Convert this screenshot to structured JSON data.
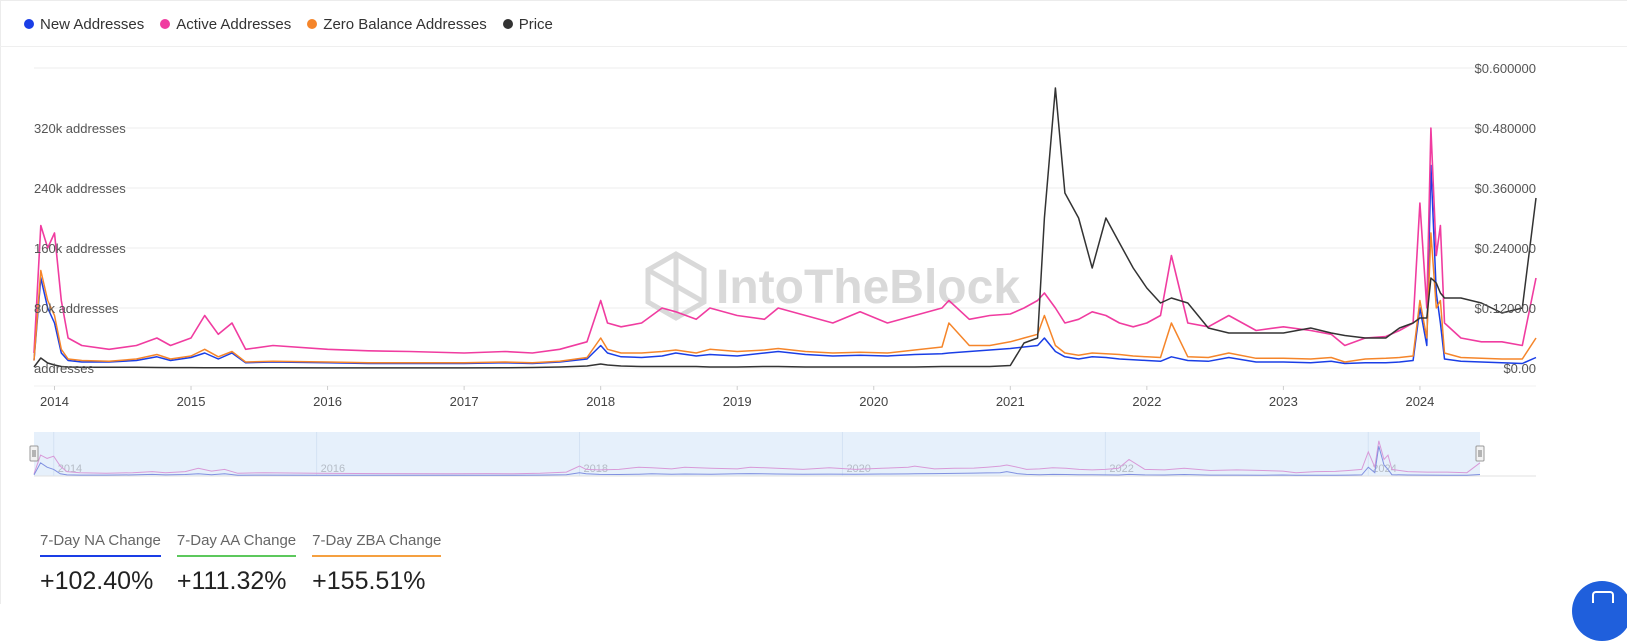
{
  "watermark": "IntoTheBlock",
  "legend": [
    {
      "label": "New Addresses",
      "color": "#1a3ee6"
    },
    {
      "label": "Active Addresses",
      "color": "#f03ca0"
    },
    {
      "label": "Zero Balance Addresses",
      "color": "#f5852a"
    },
    {
      "label": "Price",
      "color": "#333333"
    }
  ],
  "stats": [
    {
      "label": "7-Day NA Change",
      "value": "+102.40%",
      "color": "#1a3ee6"
    },
    {
      "label": "7-Day AA Change",
      "value": "+111.32%",
      "color": "#5cc85c"
    },
    {
      "label": "7-Day ZBA Change",
      "value": "+155.51%",
      "color": "#f5a040"
    }
  ],
  "chart_data": {
    "type": "line",
    "x_range": [
      2013.85,
      2024.85
    ],
    "x_ticks": [
      "2014",
      "2015",
      "2016",
      "2017",
      "2018",
      "2019",
      "2020",
      "2021",
      "2022",
      "2023",
      "2024"
    ],
    "navigator_ticks": [
      "2014",
      "2016",
      "2018",
      "2020",
      "2022",
      "2024"
    ],
    "y_left": {
      "ticks": [
        {
          "value": 0,
          "label": "addresses"
        },
        {
          "value": 80000,
          "label": "80k addresses"
        },
        {
          "value": 160000,
          "label": "160k addresses"
        },
        {
          "value": 240000,
          "label": "240k addresses"
        },
        {
          "value": 320000,
          "label": "320k addresses"
        }
      ],
      "range": [
        0,
        400000
      ]
    },
    "y_right": {
      "ticks": [
        {
          "value": 0,
          "label": "$0.00"
        },
        {
          "value": 0.12,
          "label": "$0.120000"
        },
        {
          "value": 0.24,
          "label": "$0.240000"
        },
        {
          "value": 0.36,
          "label": "$0.360000"
        },
        {
          "value": 0.48,
          "label": "$0.480000"
        },
        {
          "value": 0.6,
          "label": "$0.600000"
        }
      ],
      "range": [
        0,
        0.6
      ]
    },
    "grid": true,
    "legend_position": "top-left",
    "x": [
      2013.85,
      2013.9,
      2013.95,
      2014.0,
      2014.05,
      2014.1,
      2014.2,
      2014.4,
      2014.6,
      2014.75,
      2014.85,
      2015.0,
      2015.1,
      2015.2,
      2015.3,
      2015.4,
      2015.6,
      2016.0,
      2016.3,
      2016.6,
      2017.0,
      2017.3,
      2017.5,
      2017.7,
      2017.9,
      2018.0,
      2018.05,
      2018.15,
      2018.3,
      2018.45,
      2018.55,
      2018.7,
      2018.8,
      2019.0,
      2019.2,
      2019.3,
      2019.5,
      2019.7,
      2019.9,
      2020.1,
      2020.3,
      2020.5,
      2020.55,
      2020.7,
      2020.85,
      2021.0,
      2021.1,
      2021.2,
      2021.25,
      2021.33,
      2021.4,
      2021.5,
      2021.6,
      2021.7,
      2021.8,
      2021.9,
      2022.0,
      2022.1,
      2022.18,
      2022.3,
      2022.45,
      2022.6,
      2022.8,
      2023.0,
      2023.2,
      2023.35,
      2023.45,
      2023.6,
      2023.75,
      2023.85,
      2023.95,
      2024.0,
      2024.05,
      2024.08,
      2024.12,
      2024.15,
      2024.18,
      2024.3,
      2024.45,
      2024.6,
      2024.75,
      2024.85
    ],
    "series": [
      {
        "name": "New Addresses",
        "color": "#1a3ee6",
        "values": [
          10000,
          120000,
          80000,
          60000,
          20000,
          10000,
          8000,
          8000,
          10000,
          15000,
          10000,
          14000,
          20000,
          12000,
          20000,
          7000,
          8000,
          7000,
          6000,
          6000,
          6000,
          7000,
          6000,
          8000,
          12000,
          30000,
          20000,
          15000,
          14000,
          16000,
          20000,
          16000,
          18000,
          16000,
          20000,
          22000,
          18000,
          16000,
          17000,
          16000,
          18000,
          19000,
          20000,
          22000,
          24000,
          26000,
          28000,
          30000,
          40000,
          22000,
          15000,
          12000,
          15000,
          14000,
          12000,
          11000,
          10000,
          9000,
          15000,
          10000,
          9000,
          14000,
          8000,
          8000,
          7000,
          9000,
          6000,
          7000,
          7000,
          8000,
          10000,
          80000,
          30000,
          270000,
          100000,
          60000,
          12000,
          9000,
          8000,
          7000,
          6000,
          14000
        ]
      },
      {
        "name": "Active Addresses",
        "color": "#f03ca0",
        "values": [
          20000,
          190000,
          160000,
          180000,
          90000,
          40000,
          30000,
          25000,
          30000,
          40000,
          30000,
          40000,
          70000,
          45000,
          60000,
          25000,
          30000,
          25000,
          23000,
          22000,
          20000,
          22000,
          20000,
          25000,
          35000,
          90000,
          60000,
          55000,
          60000,
          80000,
          75000,
          65000,
          80000,
          70000,
          65000,
          80000,
          70000,
          60000,
          75000,
          60000,
          70000,
          80000,
          90000,
          65000,
          70000,
          72000,
          80000,
          90000,
          100000,
          80000,
          60000,
          65000,
          75000,
          70000,
          60000,
          55000,
          60000,
          70000,
          150000,
          60000,
          55000,
          70000,
          50000,
          55000,
          50000,
          45000,
          30000,
          40000,
          42000,
          50000,
          60000,
          220000,
          80000,
          320000,
          150000,
          190000,
          60000,
          40000,
          35000,
          35000,
          30000,
          120000
        ]
      },
      {
        "name": "Zero Balance Addresses",
        "color": "#f5852a",
        "values": [
          10000,
          130000,
          90000,
          70000,
          25000,
          12000,
          10000,
          9000,
          12000,
          18000,
          12000,
          16000,
          25000,
          15000,
          22000,
          8000,
          9000,
          8000,
          7000,
          7000,
          7000,
          8000,
          7000,
          9000,
          14000,
          40000,
          25000,
          20000,
          20000,
          22000,
          24000,
          20000,
          25000,
          22000,
          24000,
          26000,
          22000,
          20000,
          21000,
          20000,
          24000,
          28000,
          60000,
          30000,
          30000,
          35000,
          40000,
          45000,
          70000,
          30000,
          20000,
          17000,
          20000,
          19000,
          18000,
          16000,
          15000,
          14000,
          60000,
          15000,
          14000,
          20000,
          13000,
          13000,
          12000,
          14000,
          8000,
          12000,
          13000,
          14000,
          16000,
          90000,
          40000,
          180000,
          80000,
          90000,
          20000,
          14000,
          13000,
          12000,
          12000,
          40000
        ]
      },
      {
        "name": "Price",
        "color": "#333333",
        "values": [
          0.002,
          0.02,
          0.01,
          0.006,
          0.003,
          0.002,
          0.0015,
          0.0015,
          0.0015,
          0.001,
          0.0008,
          0.0007,
          0.0006,
          0.0005,
          0.0005,
          0.0004,
          0.0004,
          0.0003,
          0.0003,
          0.0003,
          0.0003,
          0.0005,
          0.001,
          0.002,
          0.004,
          0.008,
          0.006,
          0.004,
          0.003,
          0.003,
          0.003,
          0.003,
          0.002,
          0.002,
          0.003,
          0.003,
          0.002,
          0.002,
          0.002,
          0.002,
          0.002,
          0.003,
          0.003,
          0.003,
          0.003,
          0.005,
          0.05,
          0.06,
          0.3,
          0.56,
          0.35,
          0.3,
          0.2,
          0.3,
          0.25,
          0.2,
          0.16,
          0.13,
          0.14,
          0.13,
          0.08,
          0.07,
          0.07,
          0.07,
          0.08,
          0.07,
          0.065,
          0.06,
          0.06,
          0.08,
          0.09,
          0.1,
          0.1,
          0.18,
          0.17,
          0.15,
          0.14,
          0.14,
          0.13,
          0.11,
          0.12,
          0.34
        ]
      }
    ]
  }
}
